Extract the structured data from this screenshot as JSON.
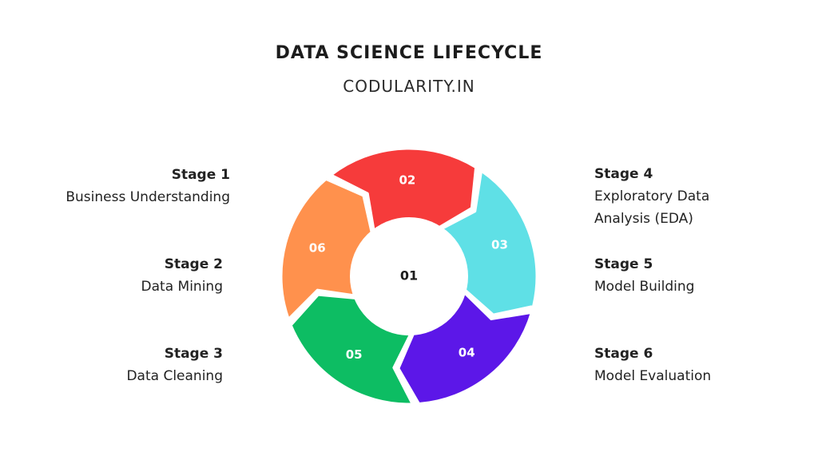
{
  "header": {
    "title": "DATA SCIENCE LIFECYCLE",
    "subtitle": "CODULARITY.IN"
  },
  "stages": [
    {
      "title": "Stage 1",
      "desc": "Business Understanding"
    },
    {
      "title": "Stage 2",
      "desc": "Data Mining"
    },
    {
      "title": "Stage 3",
      "desc": "Data Cleaning"
    },
    {
      "title": "Stage 4",
      "desc": "Exploratory Data\nAnalysis (EDA)"
    },
    {
      "title": "Stage 5",
      "desc": "Model Building"
    },
    {
      "title": "Stage 6",
      "desc": "Model Evaluation"
    }
  ],
  "cycle": {
    "center_label": "01",
    "segments": [
      {
        "label": "02",
        "color": "#f63b3b"
      },
      {
        "label": "03",
        "color": "#5fe0e6"
      },
      {
        "label": "04",
        "color": "#5c17e8"
      },
      {
        "label": "05",
        "color": "#0dbd63"
      },
      {
        "label": "06",
        "color": "#ff914d"
      }
    ]
  }
}
